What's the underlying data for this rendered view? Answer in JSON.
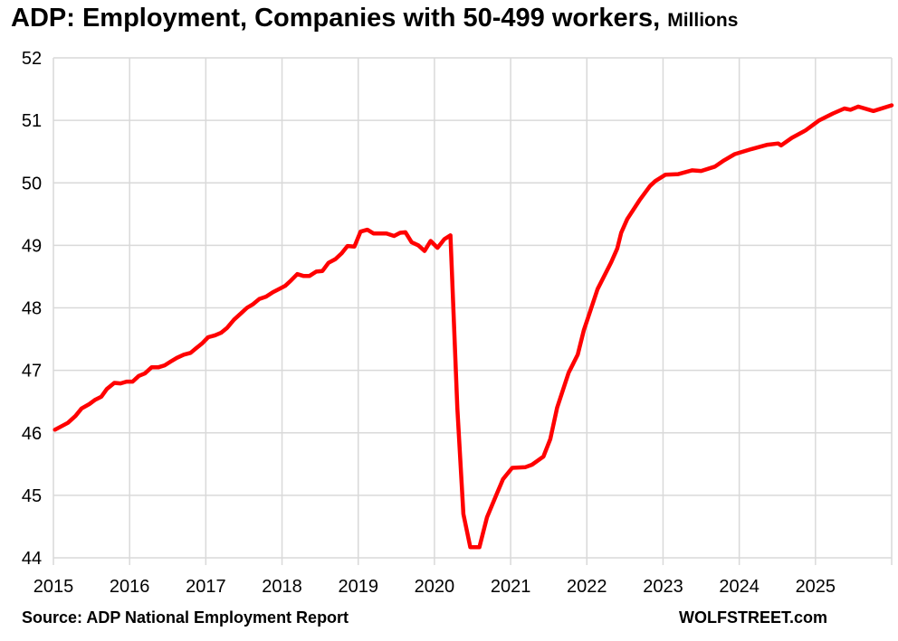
{
  "chart_data": {
    "type": "line",
    "title": "ADP: Employment, Companies with 50-499 workers,",
    "title_unit": "Millions",
    "xlabel": "",
    "ylabel": "",
    "xlim": [
      2015,
      2026
    ],
    "ylim": [
      44,
      52
    ],
    "x_ticks": [
      "2015",
      "2016",
      "2017",
      "2018",
      "2019",
      "2020",
      "2021",
      "2022",
      "2023",
      "2024",
      "2025"
    ],
    "y_ticks": [
      "44",
      "45",
      "46",
      "47",
      "48",
      "49",
      "50",
      "51",
      "52"
    ],
    "grid": true,
    "line_color": "#ff0000",
    "series": [
      {
        "name": "Employment (millions)",
        "points": [
          [
            2015.02,
            46.05
          ],
          [
            2015.19,
            46.16
          ],
          [
            2015.29,
            46.27
          ],
          [
            2015.37,
            46.39
          ],
          [
            2015.47,
            46.46
          ],
          [
            2015.55,
            46.53
          ],
          [
            2015.63,
            46.58
          ],
          [
            2015.7,
            46.7
          ],
          [
            2015.8,
            46.8
          ],
          [
            2015.88,
            46.79
          ],
          [
            2015.96,
            46.82
          ],
          [
            2016.04,
            46.82
          ],
          [
            2016.12,
            46.91
          ],
          [
            2016.2,
            46.95
          ],
          [
            2016.29,
            47.05
          ],
          [
            2016.38,
            47.05
          ],
          [
            2016.46,
            47.08
          ],
          [
            2016.54,
            47.14
          ],
          [
            2016.62,
            47.2
          ],
          [
            2016.71,
            47.25
          ],
          [
            2016.8,
            47.28
          ],
          [
            2016.87,
            47.35
          ],
          [
            2016.95,
            47.43
          ],
          [
            2017.03,
            47.53
          ],
          [
            2017.12,
            47.56
          ],
          [
            2017.2,
            47.6
          ],
          [
            2017.28,
            47.68
          ],
          [
            2017.37,
            47.81
          ],
          [
            2017.46,
            47.91
          ],
          [
            2017.54,
            48.0
          ],
          [
            2017.62,
            48.06
          ],
          [
            2017.7,
            48.14
          ],
          [
            2017.79,
            48.18
          ],
          [
            2017.88,
            48.25
          ],
          [
            2017.96,
            48.3
          ],
          [
            2018.04,
            48.35
          ],
          [
            2018.12,
            48.44
          ],
          [
            2018.2,
            48.54
          ],
          [
            2018.28,
            48.51
          ],
          [
            2018.36,
            48.51
          ],
          [
            2018.45,
            48.58
          ],
          [
            2018.53,
            48.59
          ],
          [
            2018.61,
            48.72
          ],
          [
            2018.7,
            48.78
          ],
          [
            2018.78,
            48.87
          ],
          [
            2018.86,
            48.99
          ],
          [
            2018.95,
            48.98
          ],
          [
            2019.03,
            49.22
          ],
          [
            2019.12,
            49.25
          ],
          [
            2019.2,
            49.19
          ],
          [
            2019.29,
            49.19
          ],
          [
            2019.37,
            49.19
          ],
          [
            2019.47,
            49.15
          ],
          [
            2019.55,
            49.2
          ],
          [
            2019.62,
            49.21
          ],
          [
            2019.7,
            49.05
          ],
          [
            2019.79,
            49.0
          ],
          [
            2019.87,
            48.91
          ],
          [
            2019.95,
            49.07
          ],
          [
            2020.04,
            48.96
          ],
          [
            2020.13,
            49.1
          ],
          [
            2020.21,
            49.16
          ],
          [
            2020.3,
            46.4
          ],
          [
            2020.38,
            44.7
          ],
          [
            2020.47,
            44.17
          ],
          [
            2020.59,
            44.17
          ],
          [
            2020.69,
            44.65
          ],
          [
            2020.81,
            45.0
          ],
          [
            2020.9,
            45.26
          ],
          [
            2021.02,
            45.44
          ],
          [
            2021.19,
            45.45
          ],
          [
            2021.28,
            45.49
          ],
          [
            2021.43,
            45.62
          ],
          [
            2021.52,
            45.9
          ],
          [
            2021.61,
            46.4
          ],
          [
            2021.76,
            46.96
          ],
          [
            2021.88,
            47.25
          ],
          [
            2021.96,
            47.64
          ],
          [
            2022.02,
            47.86
          ],
          [
            2022.14,
            48.3
          ],
          [
            2022.32,
            48.73
          ],
          [
            2022.4,
            48.95
          ],
          [
            2022.45,
            49.2
          ],
          [
            2022.53,
            49.42
          ],
          [
            2022.69,
            49.72
          ],
          [
            2022.83,
            49.95
          ],
          [
            2022.9,
            50.03
          ],
          [
            2023.03,
            50.13
          ],
          [
            2023.2,
            50.14
          ],
          [
            2023.38,
            50.2
          ],
          [
            2023.5,
            50.19
          ],
          [
            2023.68,
            50.26
          ],
          [
            2023.8,
            50.36
          ],
          [
            2023.94,
            50.46
          ],
          [
            2024.16,
            50.54
          ],
          [
            2024.37,
            50.61
          ],
          [
            2024.51,
            50.63
          ],
          [
            2024.55,
            50.6
          ],
          [
            2024.69,
            50.72
          ],
          [
            2024.87,
            50.84
          ],
          [
            2025.05,
            51.0
          ],
          [
            2025.23,
            51.11
          ],
          [
            2025.38,
            51.19
          ],
          [
            2025.46,
            51.17
          ],
          [
            2025.56,
            51.22
          ],
          [
            2025.76,
            51.15
          ],
          [
            2026.0,
            51.24
          ]
        ]
      }
    ]
  },
  "footer": {
    "source": "Source: ADP National Employment Report",
    "brand": "WOLFSTREET.com"
  }
}
